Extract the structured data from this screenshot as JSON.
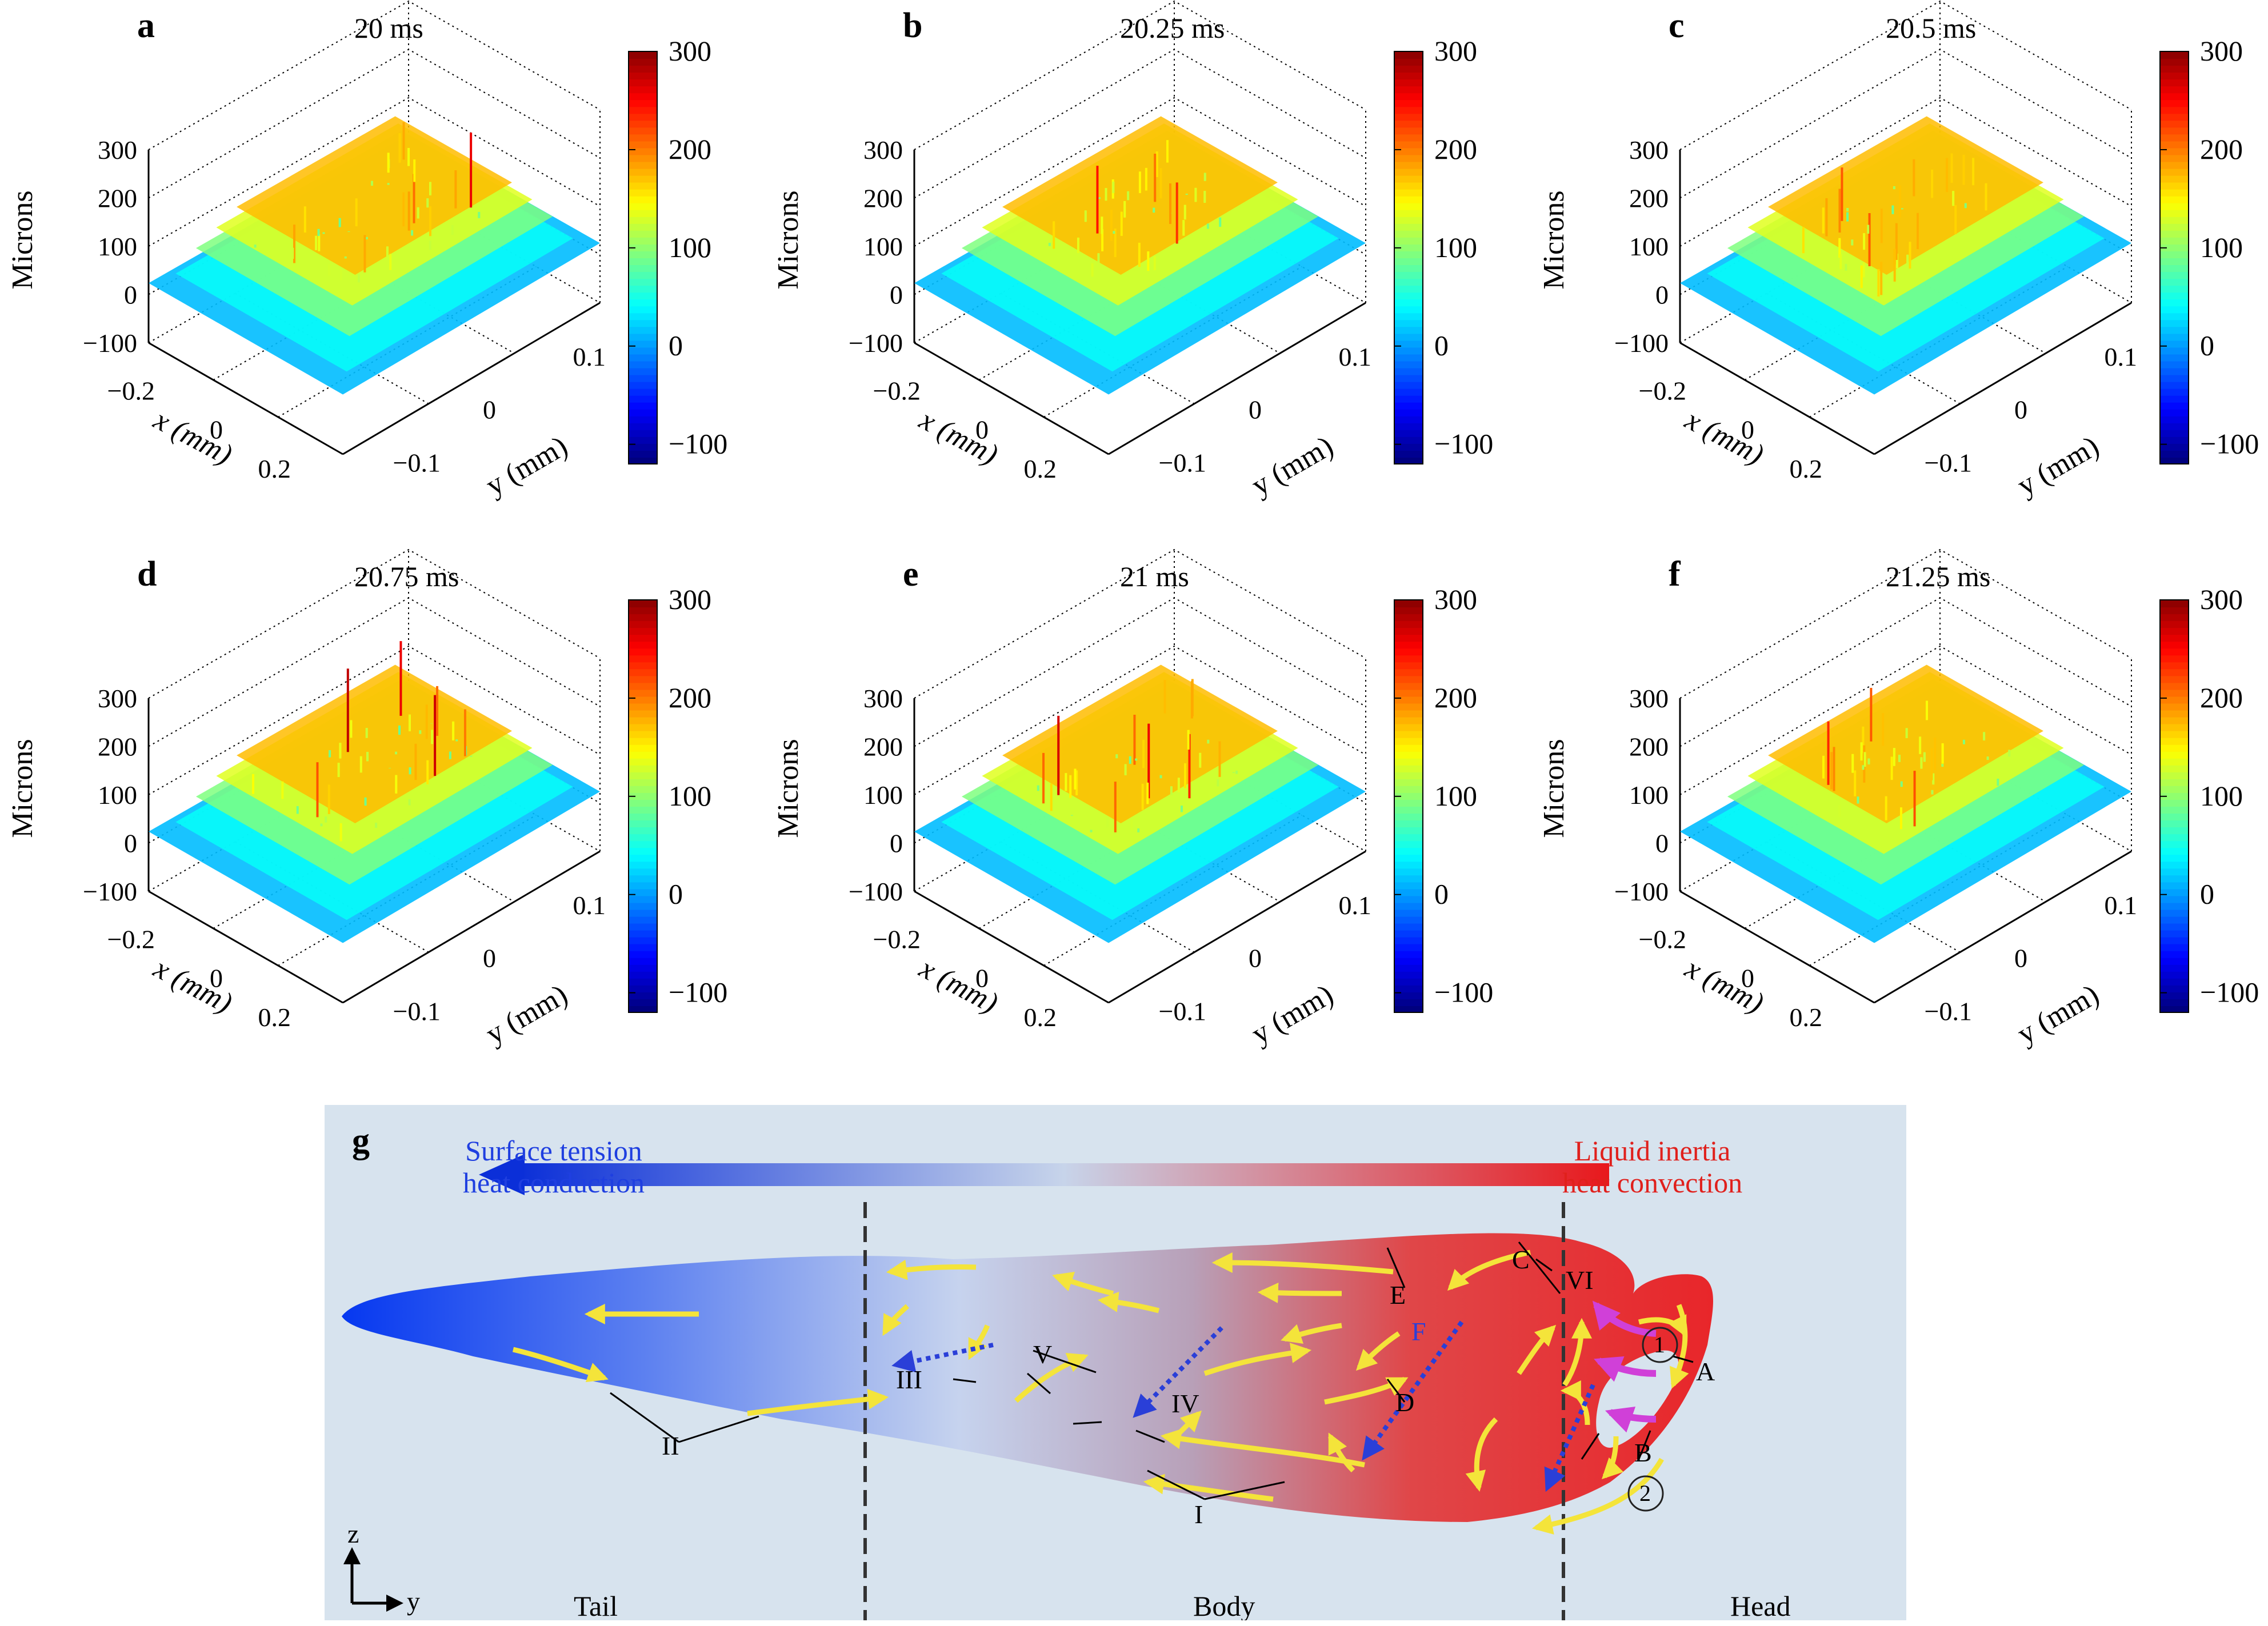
{
  "figure": {
    "colorbar_ticks": [
      "300",
      "200",
      "100",
      "0",
      "−100"
    ],
    "colormap": [
      "#00007f",
      "#0000ff",
      "#007fff",
      "#00ffff",
      "#7fff7f",
      "#ffff00",
      "#ff7f00",
      "#ff0000",
      "#7f0000"
    ],
    "zlabel": "Microns",
    "xlabel": "x (mm)",
    "ylabel": "y (mm)",
    "z_ticks": [
      "300",
      "200",
      "100",
      "0",
      "−100"
    ],
    "x_ticks": [
      "−0.2",
      "0",
      "0.2"
    ],
    "y_ticks": [
      "−0.1",
      "0",
      "0.1"
    ]
  },
  "chart_data": [
    {
      "type": "surface",
      "panel": "a",
      "title": "20 ms",
      "zlabel": "Microns",
      "xlabel": "x (mm)",
      "ylabel": "y (mm)",
      "xlim": [
        -0.25,
        0.25
      ],
      "ylim": [
        -0.15,
        0.15
      ],
      "zlim": [
        -100,
        300
      ],
      "clim": [
        -120,
        300
      ]
    },
    {
      "type": "surface",
      "panel": "b",
      "title": "20.25 ms",
      "zlabel": "Microns",
      "xlabel": "x (mm)",
      "ylabel": "y (mm)",
      "xlim": [
        -0.25,
        0.25
      ],
      "ylim": [
        -0.15,
        0.15
      ],
      "zlim": [
        -100,
        300
      ],
      "clim": [
        -120,
        300
      ]
    },
    {
      "type": "surface",
      "panel": "c",
      "title": "20.5 ms",
      "zlabel": "Microns",
      "xlabel": "x (mm)",
      "ylabel": "y (mm)",
      "xlim": [
        -0.25,
        0.25
      ],
      "ylim": [
        -0.15,
        0.15
      ],
      "zlim": [
        -100,
        300
      ],
      "clim": [
        -120,
        300
      ]
    },
    {
      "type": "surface",
      "panel": "d",
      "title": "20.75 ms",
      "zlabel": "Microns",
      "xlabel": "x (mm)",
      "ylabel": "y (mm)",
      "xlim": [
        -0.25,
        0.25
      ],
      "ylim": [
        -0.15,
        0.15
      ],
      "zlim": [
        -100,
        300
      ],
      "clim": [
        -120,
        300
      ]
    },
    {
      "type": "surface",
      "panel": "e",
      "title": "21 ms",
      "zlabel": "Microns",
      "xlabel": "x (mm)",
      "ylabel": "y (mm)",
      "xlim": [
        -0.25,
        0.25
      ],
      "ylim": [
        -0.15,
        0.15
      ],
      "zlim": [
        -100,
        300
      ],
      "clim": [
        -120,
        300
      ]
    },
    {
      "type": "surface",
      "panel": "f",
      "title": "21.25 ms",
      "zlabel": "Microns",
      "xlabel": "x (mm)",
      "ylabel": "y (mm)",
      "xlim": [
        -0.25,
        0.25
      ],
      "ylim": [
        -0.15,
        0.15
      ],
      "zlim": [
        -100,
        300
      ],
      "clim": [
        -120,
        300
      ]
    }
  ],
  "schematic": {
    "label": "g",
    "left_text_1": "Surface tension",
    "left_text_2": "heat conduction",
    "right_text_1": "Liquid inertia",
    "right_text_2": "heat convection",
    "region_tail": "Tail",
    "region_body": "Body",
    "region_head": "Head",
    "axis_z": "z",
    "axis_y": "y",
    "marks": {
      "A": "A",
      "B": "B",
      "C": "C",
      "D": "D",
      "E": "E",
      "F": "F",
      "I": "I",
      "II": "II",
      "III": "III",
      "IV": "IV",
      "V": "V",
      "VI": "VI",
      "circle1": "1",
      "circle2": "2"
    },
    "colors": {
      "tail": "#0a3fe0",
      "body": "#c8d6ee",
      "head": "#e8282a",
      "flow": "#f4e43a",
      "magenta": "#d040d8",
      "dashed": "#2a3fd8",
      "left_text": "#1f3fe0",
      "right_text": "#e0201c"
    }
  }
}
